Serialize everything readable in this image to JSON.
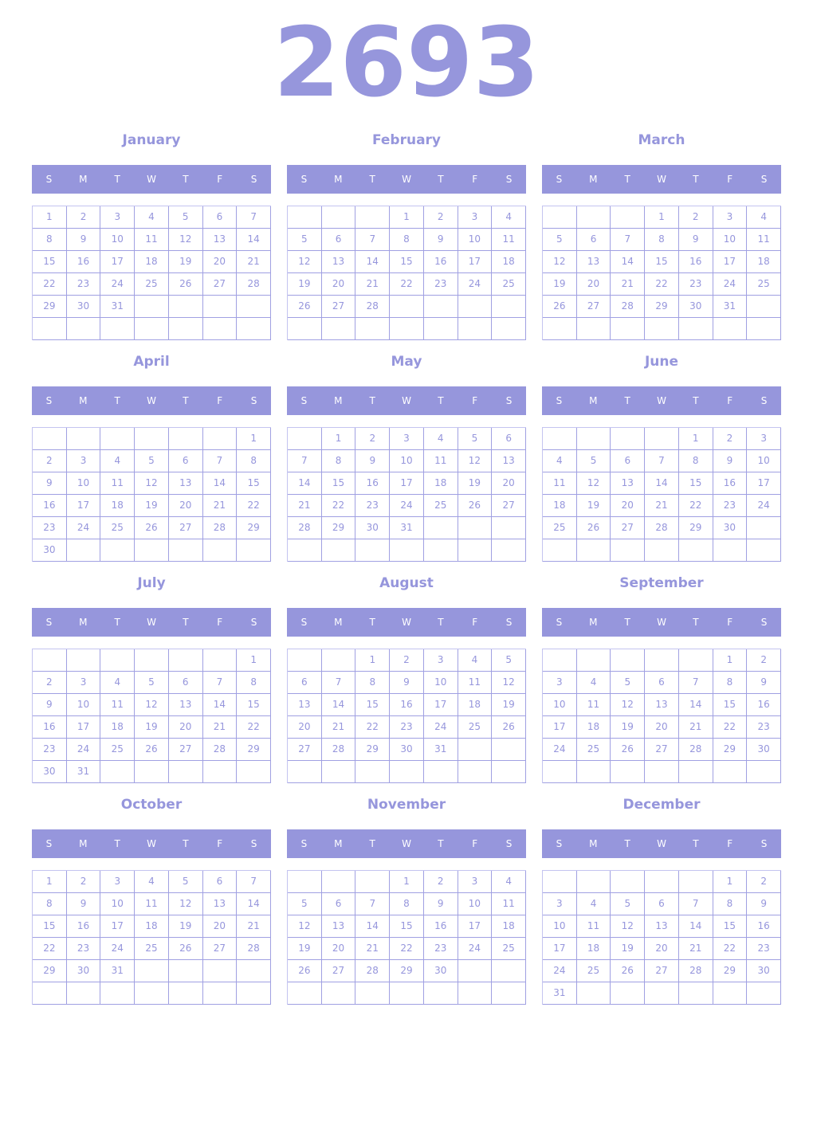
{
  "year": "2693",
  "weekday_labels": [
    "S",
    "M",
    "T",
    "W",
    "T",
    "F",
    "S"
  ],
  "colors": {
    "accent": "#9696dc",
    "header_text": "#ffffff"
  },
  "months": [
    {
      "name": "January",
      "first_weekday": 0,
      "days": 31
    },
    {
      "name": "February",
      "first_weekday": 3,
      "days": 28
    },
    {
      "name": "March",
      "first_weekday": 3,
      "days": 31
    },
    {
      "name": "April",
      "first_weekday": 6,
      "days": 30
    },
    {
      "name": "May",
      "first_weekday": 1,
      "days": 31
    },
    {
      "name": "June",
      "first_weekday": 4,
      "days": 30
    },
    {
      "name": "July",
      "first_weekday": 6,
      "days": 31
    },
    {
      "name": "August",
      "first_weekday": 2,
      "days": 31
    },
    {
      "name": "September",
      "first_weekday": 5,
      "days": 30
    },
    {
      "name": "October",
      "first_weekday": 0,
      "days": 31
    },
    {
      "name": "November",
      "first_weekday": 3,
      "days": 30
    },
    {
      "name": "December",
      "first_weekday": 5,
      "days": 31
    }
  ]
}
